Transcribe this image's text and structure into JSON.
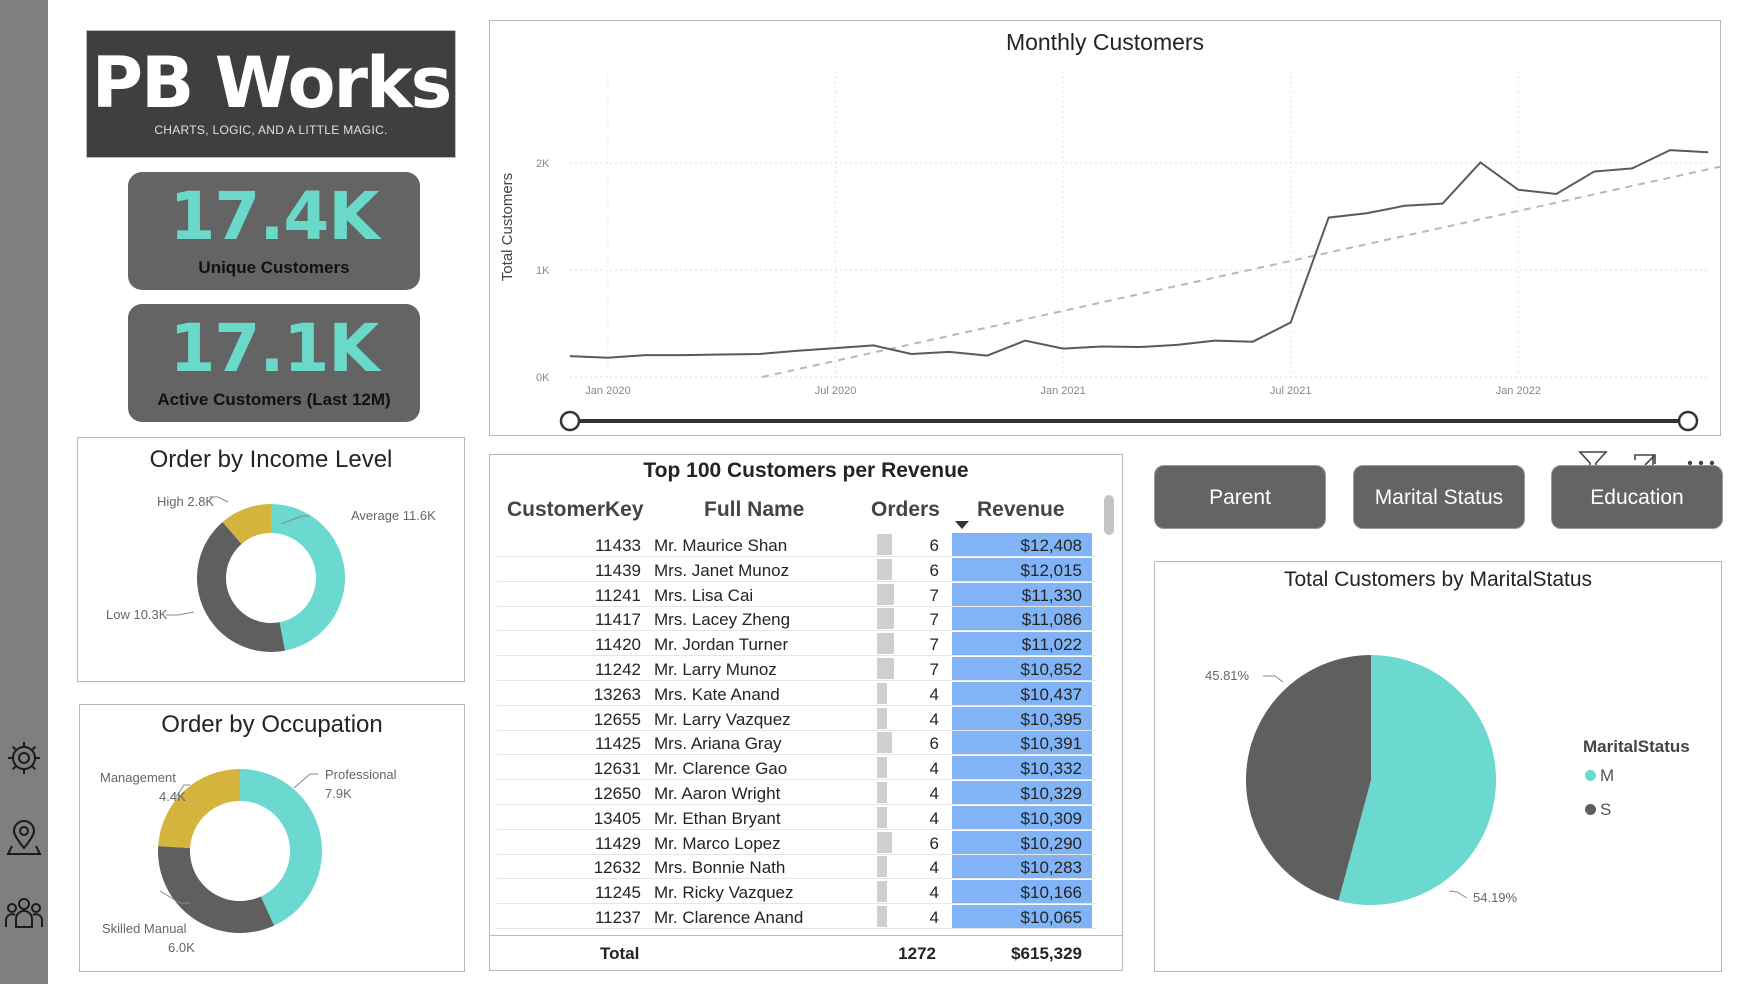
{
  "logo": {
    "title": "PB Works",
    "tagline": "CHARTS, LOGIC, AND A LITTLE MAGIC."
  },
  "kpis": [
    {
      "value": "17.4K",
      "label": "Unique Customers"
    },
    {
      "value": "17.1K",
      "label": "Active Customers (Last 12M)"
    }
  ],
  "nav": {
    "icons": [
      "settings-icon",
      "location-pin-icon",
      "people-icon"
    ]
  },
  "colors": {
    "teal": "#6bd9cf",
    "gray": "#5f5f5f",
    "gold": "#d4b43c",
    "highlight": "#7fb3f5",
    "databar": "#c8c8c8"
  },
  "slicers": [
    "Parent",
    "Marital Status",
    "Education"
  ],
  "visual_header": {
    "icons": [
      "filter-icon",
      "focus-mode-icon",
      "more-options-icon"
    ]
  },
  "chart_data": [
    {
      "id": "monthly",
      "type": "line",
      "title": "Monthly Customers",
      "ylabel": "Total Customers",
      "xlabel": "",
      "y_ticks": [
        "0K",
        "1K",
        "2K"
      ],
      "x_ticks": [
        "Jan 2020",
        "Jul 2020",
        "Jan 2021",
        "Jul 2021",
        "Jan 2022"
      ],
      "ylim": [
        0,
        2000
      ],
      "x": [
        "2019-12",
        "2020-01",
        "2020-02",
        "2020-03",
        "2020-04",
        "2020-05",
        "2020-06",
        "2020-07",
        "2020-08",
        "2020-09",
        "2020-10",
        "2020-11",
        "2020-12",
        "2021-01",
        "2021-02",
        "2021-03",
        "2021-04",
        "2021-05",
        "2021-06",
        "2021-07",
        "2021-08",
        "2021-09",
        "2021-10",
        "2021-11",
        "2021-12",
        "2022-01",
        "2022-02",
        "2022-03",
        "2022-04",
        "2022-05",
        "2022-06"
      ],
      "series": [
        {
          "values": [
            195,
            180,
            205,
            205,
            210,
            215,
            245,
            270,
            295,
            215,
            235,
            200,
            340,
            265,
            285,
            280,
            300,
            340,
            330,
            510,
            1490,
            1530,
            1600,
            1620,
            2005,
            1750,
            1710,
            1920,
            1950,
            2120,
            2100
          ]
        }
      ],
      "trend": {
        "start": [
          2020.38,
          0
        ],
        "end": [
          2022.5,
          1980
        ]
      },
      "grid": true
    },
    {
      "id": "income",
      "type": "pie",
      "title": "Order by Income Level",
      "donut": true,
      "slices": [
        {
          "name": "Average",
          "label": "Average 11.6K",
          "value": 11.6,
          "color": "#6bd9cf"
        },
        {
          "name": "Low",
          "label": "Low 10.3K",
          "value": 10.3,
          "color": "#5f5f5f"
        },
        {
          "name": "High",
          "label": "High 2.8K",
          "value": 2.8,
          "color": "#d4b43c"
        }
      ]
    },
    {
      "id": "occupation",
      "type": "pie",
      "title": "Order by Occupation",
      "donut": true,
      "slices": [
        {
          "name": "Professional",
          "label": "Professional",
          "label2": "7.9K",
          "value": 7.9,
          "color": "#6bd9cf"
        },
        {
          "name": "Skilled Manual",
          "label": "Skilled Manual",
          "label2": "6.0K",
          "value": 6.0,
          "color": "#5f5f5f"
        },
        {
          "name": "Management",
          "label": "Management",
          "label2": "4.4K",
          "value": 4.4,
          "color": "#d4b43c"
        }
      ]
    },
    {
      "id": "marital",
      "type": "pie",
      "title": "Total Customers by MaritalStatus",
      "legend_title": "MaritalStatus",
      "slices": [
        {
          "name": "M",
          "label": "54.19%",
          "value": 54.19,
          "color": "#6bd9cf"
        },
        {
          "name": "S",
          "label": "45.81%",
          "value": 45.81,
          "color": "#5f5f5f"
        }
      ]
    },
    {
      "id": "table",
      "type": "table",
      "title": "Top 100 Customers per Revenue",
      "columns": [
        "CustomerKey",
        "Full Name",
        "Orders",
        "Revenue"
      ],
      "rows": [
        [
          "11433",
          "Mr. Maurice Shan",
          6,
          "$12,408"
        ],
        [
          "11439",
          "Mrs. Janet Munoz",
          6,
          "$12,015"
        ],
        [
          "11241",
          "Mrs. Lisa Cai",
          7,
          "$11,330"
        ],
        [
          "11417",
          "Mrs. Lacey Zheng",
          7,
          "$11,086"
        ],
        [
          "11420",
          "Mr. Jordan Turner",
          7,
          "$11,022"
        ],
        [
          "11242",
          "Mr. Larry Munoz",
          7,
          "$10,852"
        ],
        [
          "13263",
          "Mrs. Kate Anand",
          4,
          "$10,437"
        ],
        [
          "12655",
          "Mr. Larry Vazquez",
          4,
          "$10,395"
        ],
        [
          "11425",
          "Mrs. Ariana Gray",
          6,
          "$10,391"
        ],
        [
          "12631",
          "Mr. Clarence Gao",
          4,
          "$10,332"
        ],
        [
          "12650",
          "Mr. Aaron Wright",
          4,
          "$10,329"
        ],
        [
          "13405",
          "Mr. Ethan Bryant",
          4,
          "$10,309"
        ],
        [
          "11429",
          "Mr. Marco Lopez",
          6,
          "$10,290"
        ],
        [
          "12632",
          "Mrs. Bonnie Nath",
          4,
          "$10,283"
        ],
        [
          "11245",
          "Mr. Ricky Vazquez",
          4,
          "$10,166"
        ],
        [
          "11237",
          "Mr. Clarence Anand",
          4,
          "$10,065"
        ]
      ],
      "total": {
        "label": "Total",
        "orders": "1272",
        "revenue": "$615,329"
      },
      "sort": {
        "column": "Revenue",
        "direction": "descending"
      }
    }
  ]
}
